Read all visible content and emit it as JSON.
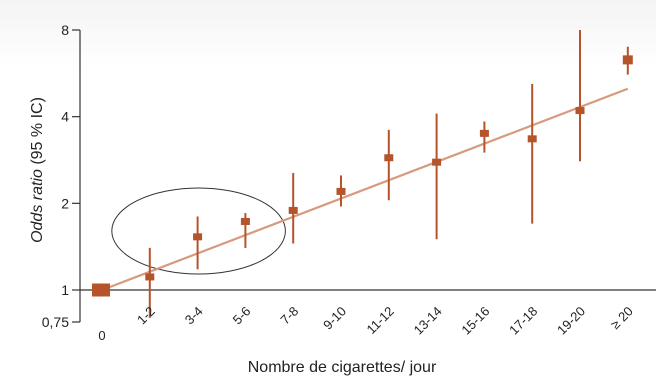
{
  "chart_data": {
    "type": "scatter",
    "xlabel": "Nombre de cigarettes/ jour",
    "ylabel_italic": "Odds ratio",
    "ylabel_rest": " (95 % IC)",
    "y_scale": "log",
    "ylim": [
      0.75,
      8
    ],
    "y_ticks": [
      {
        "value": 0.75,
        "label": "0,75"
      },
      {
        "value": 1,
        "label": "1"
      },
      {
        "value": 2,
        "label": "2"
      },
      {
        "value": 4,
        "label": "4"
      },
      {
        "value": 8,
        "label": "8"
      }
    ],
    "categories": [
      "0",
      "1-2",
      "3-4",
      "5-6",
      "7-8",
      "9-10",
      "11-12",
      "13-14",
      "15-16",
      "17-18",
      "19-20",
      "≥ 20"
    ],
    "estimates": [
      1.0,
      1.11,
      1.53,
      1.73,
      1.89,
      2.2,
      2.88,
      2.78,
      3.5,
      3.35,
      4.2,
      6.3
    ],
    "ci_lower": [
      1.0,
      0.8,
      1.18,
      1.4,
      1.45,
      1.95,
      2.05,
      1.5,
      3.0,
      1.7,
      2.8,
      5.6
    ],
    "ci_upper": [
      1.0,
      1.4,
      1.8,
      1.85,
      2.55,
      2.5,
      3.6,
      4.1,
      3.85,
      5.2,
      8.0,
      7.0
    ],
    "trend_line": {
      "from": {
        "x": "0",
        "y": 1.0
      },
      "to": {
        "x": "≥ 20",
        "y": 5.0
      }
    },
    "annotations": [
      {
        "type": "ellipse",
        "encloses": [
          "1-2",
          "3-4",
          "5-6"
        ]
      }
    ],
    "colors": {
      "series": "#b5532b",
      "trend": "#d79a7c",
      "axis": "#333333",
      "ellipse": "#333333"
    },
    "grid": false,
    "legend": "none"
  }
}
